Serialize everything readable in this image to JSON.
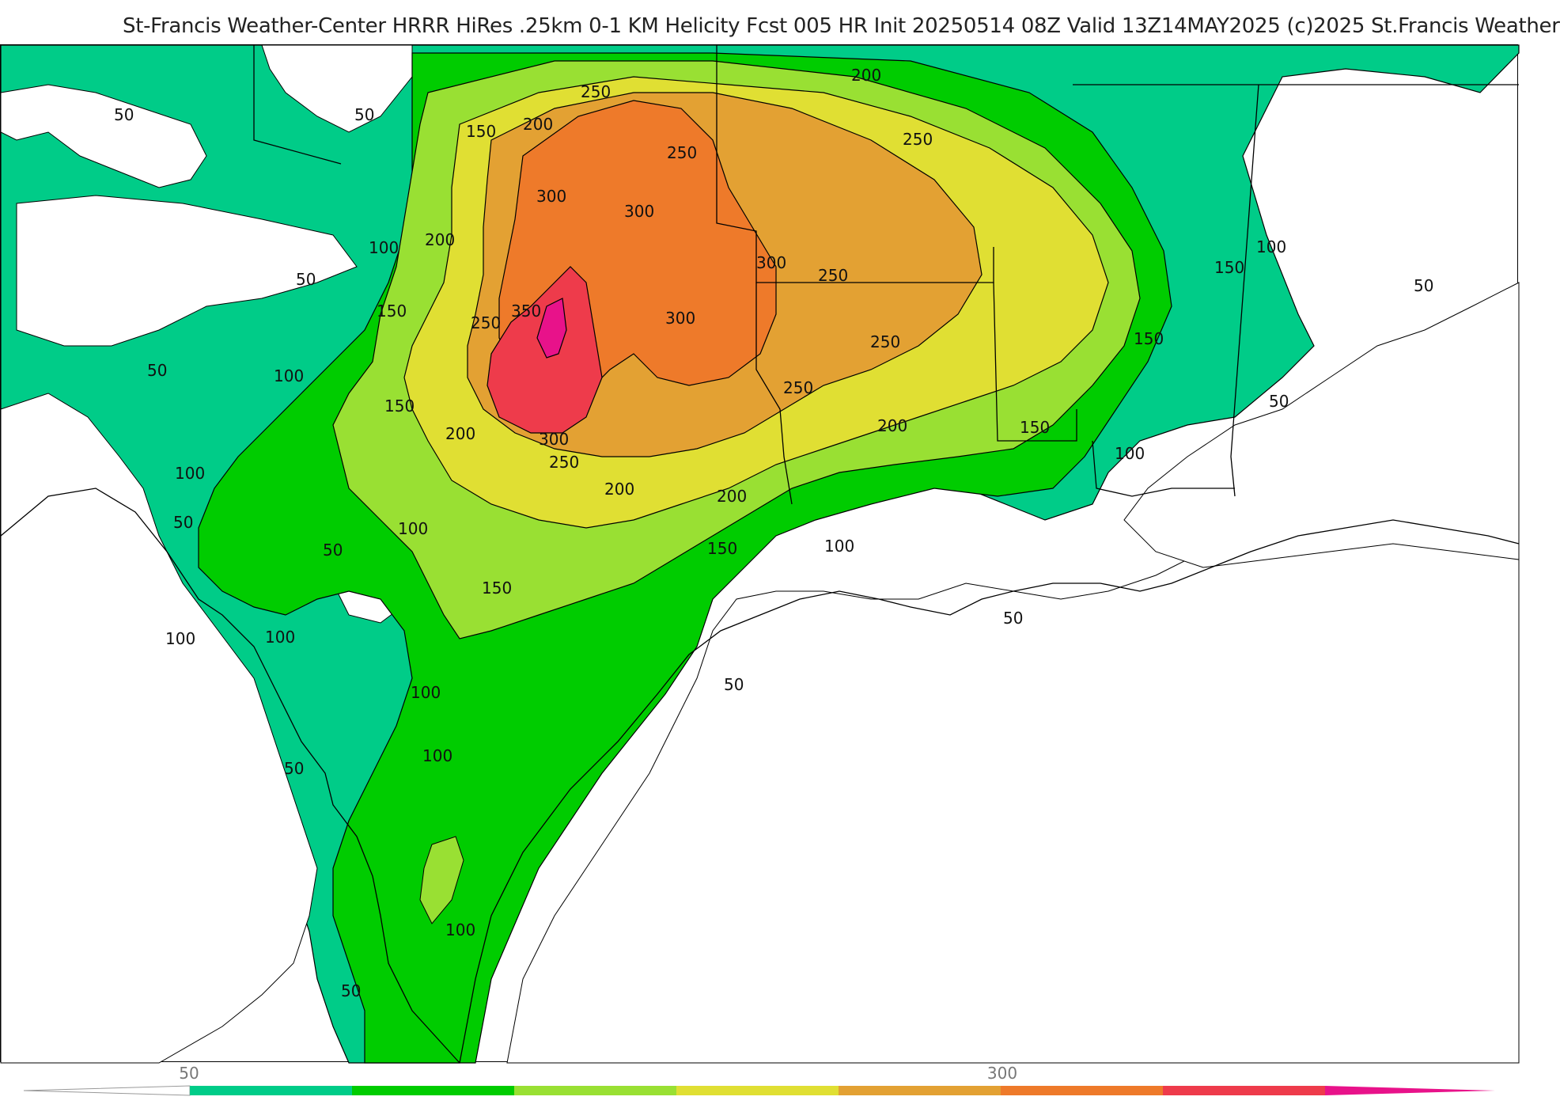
{
  "title": "St-Francis Weather-Center HRRR HiRes .25km 0-1 KM Helicity Fcst 005 HR Init 20250514 08Z  Valid 13Z14MAY2025    (c)2025 St.Francis Weather",
  "colors": {
    "level_50": "#00cc88",
    "level_100": "#00cc00",
    "level_150": "#99e033",
    "level_200": "#e0df33",
    "level_250": "#e3a133",
    "level_300": "#ee7a2a",
    "level_350": "#ee3b4b",
    "level_400": "#e8128a",
    "water": "#ffffff",
    "contour_line": "#000000"
  },
  "colorbar": {
    "bands": [
      "#00cc88",
      "#00cc00",
      "#99e033",
      "#e0df33",
      "#e3a133",
      "#ee7a2a",
      "#ee3b4b",
      "#e8128a"
    ],
    "tick_labels": [
      "50",
      "300"
    ]
  },
  "contour_labels": [
    {
      "text": "50"
    },
    {
      "text": "50"
    },
    {
      "text": "50"
    },
    {
      "text": "50"
    },
    {
      "text": "50"
    },
    {
      "text": "50"
    },
    {
      "text": "50"
    },
    {
      "text": "50"
    },
    {
      "text": "50"
    },
    {
      "text": "50"
    },
    {
      "text": "50"
    },
    {
      "text": "50"
    },
    {
      "text": "100"
    },
    {
      "text": "100"
    },
    {
      "text": "100"
    },
    {
      "text": "100"
    },
    {
      "text": "100"
    },
    {
      "text": "100"
    },
    {
      "text": "100"
    },
    {
      "text": "100"
    },
    {
      "text": "100"
    },
    {
      "text": "100"
    },
    {
      "text": "100"
    },
    {
      "text": "100"
    },
    {
      "text": "150"
    },
    {
      "text": "150"
    },
    {
      "text": "150"
    },
    {
      "text": "150"
    },
    {
      "text": "150"
    },
    {
      "text": "150"
    },
    {
      "text": "150"
    },
    {
      "text": "150"
    },
    {
      "text": "200"
    },
    {
      "text": "200"
    },
    {
      "text": "200"
    },
    {
      "text": "200"
    },
    {
      "text": "200"
    },
    {
      "text": "200"
    },
    {
      "text": "200"
    },
    {
      "text": "250"
    },
    {
      "text": "250"
    },
    {
      "text": "250"
    },
    {
      "text": "250"
    },
    {
      "text": "250"
    },
    {
      "text": "250"
    },
    {
      "text": "250"
    },
    {
      "text": "250"
    },
    {
      "text": "300"
    },
    {
      "text": "300"
    },
    {
      "text": "300"
    },
    {
      "text": "300"
    },
    {
      "text": "300"
    },
    {
      "text": "350"
    }
  ]
}
